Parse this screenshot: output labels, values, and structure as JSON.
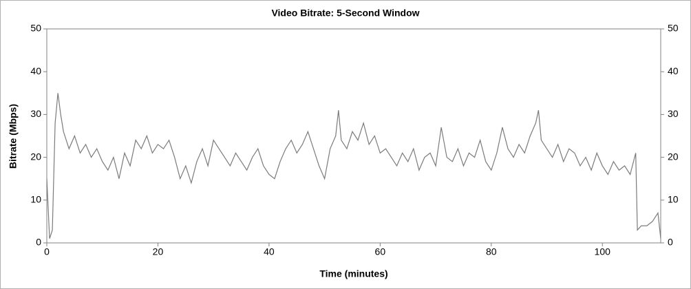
{
  "chart_data": {
    "type": "line",
    "title": "Video Bitrate: 5-Second Window",
    "xlabel": "Time (minutes)",
    "ylabel": "Bitrate (Mbps)",
    "x": [
      0,
      0.5,
      1,
      1.5,
      2,
      2.5,
      3,
      4,
      5,
      6,
      7,
      8,
      9,
      10,
      11,
      12,
      13,
      14,
      15,
      16,
      17,
      18,
      19,
      20,
      21,
      22,
      23,
      24,
      25,
      26,
      27,
      28,
      29,
      30,
      31,
      32,
      33,
      34,
      35,
      36,
      37,
      38,
      39,
      40,
      41,
      42,
      43,
      44,
      45,
      46,
      47,
      48,
      49,
      50,
      51,
      52,
      52.5,
      53,
      54,
      55,
      56,
      57,
      58,
      59,
      60,
      61,
      62,
      63,
      64,
      65,
      66,
      67,
      68,
      69,
      70,
      71,
      72,
      73,
      74,
      75,
      76,
      77,
      78,
      79,
      80,
      81,
      82,
      83,
      84,
      85,
      86,
      87,
      88,
      88.5,
      89,
      90,
      91,
      92,
      93,
      94,
      95,
      96,
      97,
      98,
      99,
      100,
      101,
      102,
      103,
      104,
      105,
      106,
      106.3,
      107,
      108,
      109,
      110,
      110.5
    ],
    "series": [
      {
        "name": "Bitrate",
        "color": "#7a7a7a",
        "values": [
          15,
          1,
          3,
          28,
          35,
          30,
          26,
          22,
          25,
          21,
          23,
          20,
          22,
          19,
          17,
          20,
          15,
          21,
          18,
          24,
          22,
          25,
          21,
          23,
          22,
          24,
          20,
          15,
          18,
          14,
          19,
          22,
          18,
          24,
          22,
          20,
          18,
          21,
          19,
          17,
          20,
          22,
          18,
          16,
          15,
          19,
          22,
          24,
          21,
          23,
          26,
          22,
          18,
          15,
          22,
          25,
          31,
          24,
          22,
          26,
          24,
          28,
          23,
          25,
          21,
          22,
          20,
          18,
          21,
          19,
          22,
          17,
          20,
          21,
          18,
          27,
          20,
          19,
          22,
          18,
          21,
          20,
          24,
          19,
          17,
          21,
          27,
          22,
          20,
          23,
          21,
          25,
          28,
          31,
          24,
          22,
          20,
          23,
          19,
          22,
          21,
          18,
          20,
          17,
          21,
          18,
          16,
          19,
          17,
          18,
          16,
          21,
          3,
          4,
          4,
          5,
          7,
          1
        ]
      }
    ],
    "xlim": [
      0,
      110.5
    ],
    "ylim": [
      0,
      50
    ],
    "xticks": [
      0,
      20,
      40,
      60,
      80,
      100
    ],
    "yticks": [
      0,
      10,
      20,
      30,
      40,
      50
    ],
    "y2lim": [
      0,
      50
    ],
    "y2ticks": [
      0,
      10,
      20,
      30,
      40,
      50
    ]
  }
}
